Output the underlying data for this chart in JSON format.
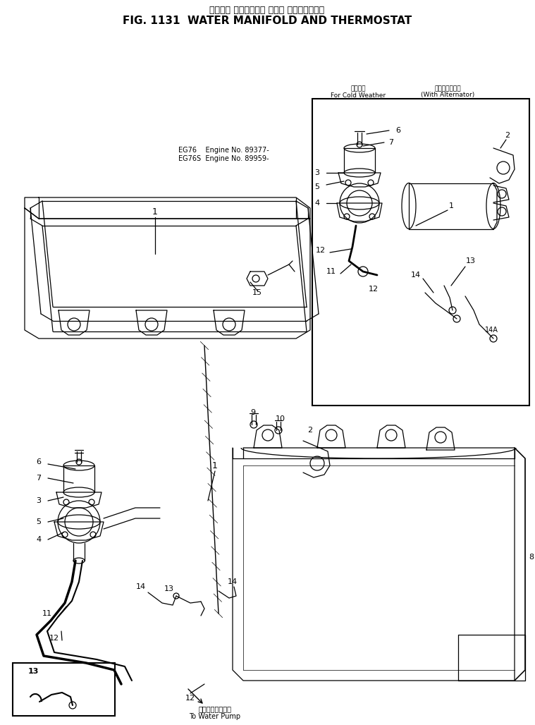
{
  "title_japanese": "ウォータ マニホールド および サーモスタット",
  "title_english": "FIG. 1131  WATER MANIFOLD AND THERMOSTAT",
  "background_color": "#ffffff",
  "fig_width": 7.59,
  "fig_height": 10.28,
  "dpi": 100,
  "subtitle_left_jp": "寒冷仕様",
  "subtitle_left_en": "For Cold Weather",
  "subtitle_right_jp": "オルタネータ付",
  "subtitle_right_en": "(With Alternator)",
  "engine_note_1": "EG76    Engine No. 89377-",
  "engine_note_2": "EG76S  Engine No. 89959-",
  "bottom_note_jp": "ウォータポンプへ",
  "bottom_note_en": "To Water Pump",
  "lc": "#000000",
  "lw": 0.9
}
